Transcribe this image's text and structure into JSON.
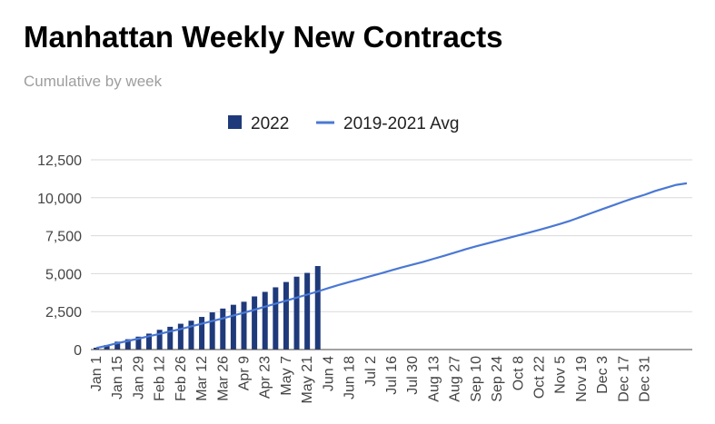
{
  "chart_data": {
    "type": "bar+line",
    "title": "Manhattan Weekly New Contracts",
    "subtitle": "Cumulative by week",
    "legend_position": "top-center",
    "ylim": [
      0,
      12500
    ],
    "yticks": [
      "0",
      "2,500",
      "5,000",
      "7,500",
      "10,000",
      "12,500"
    ],
    "ytick_values": [
      0,
      2500,
      5000,
      7500,
      10000,
      12500
    ],
    "grid": true,
    "x_labels": [
      "Jan 1",
      "Jan 15",
      "Jan 29",
      "Feb 12",
      "Feb 26",
      "Mar 12",
      "Mar 26",
      "Apr 9",
      "Apr 23",
      "May 7",
      "May 21",
      "Jun 4",
      "Jun 18",
      "Jul 2",
      "Jul 16",
      "Jul 30",
      "Aug 13",
      "Aug 27",
      "Sep 10",
      "Sep 24",
      "Oct 8",
      "Oct 22",
      "Nov 5",
      "Nov 19",
      "Dec 3",
      "Dec 17",
      "Dec 31"
    ],
    "series": [
      {
        "name": "2022",
        "kind": "bar",
        "color": "#1f3a7a",
        "values": [
          120,
          300,
          520,
          680,
          850,
          1050,
          1300,
          1500,
          1700,
          1900,
          2150,
          2450,
          2700,
          2950,
          3150,
          3500,
          3800,
          4100,
          4450,
          4800,
          5050,
          5500
        ]
      },
      {
        "name": "2019-2021 Avg",
        "kind": "line",
        "color": "#4a78d4",
        "values": [
          100,
          250,
          420,
          570,
          720,
          880,
          1030,
          1200,
          1350,
          1530,
          1700,
          1880,
          2050,
          2240,
          2430,
          2620,
          2820,
          3020,
          3220,
          3420,
          3620,
          3830,
          4050,
          4260,
          4450,
          4640,
          4830,
          5020,
          5220,
          5420,
          5600,
          5780,
          5980,
          6180,
          6390,
          6600,
          6800,
          6980,
          7160,
          7340,
          7520,
          7700,
          7880,
          8080,
          8280,
          8500,
          8750,
          9000,
          9250,
          9500,
          9750,
          9980,
          10200,
          10450,
          10650,
          10850,
          10950
        ]
      }
    ]
  }
}
